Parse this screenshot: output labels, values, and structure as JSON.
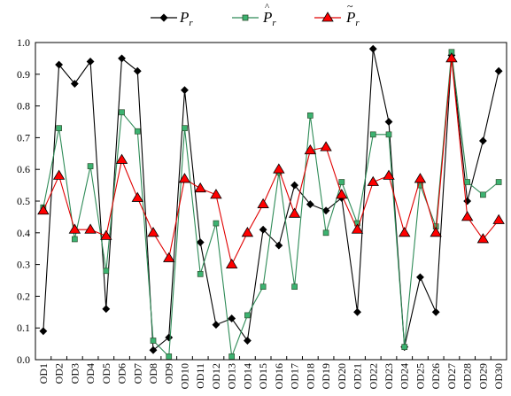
{
  "chart_data": {
    "type": "line",
    "title": "",
    "xlabel": "",
    "ylabel": "",
    "ylim": [
      0.0,
      1.0
    ],
    "yticks": [
      0.0,
      0.1,
      0.2,
      0.3,
      0.4,
      0.5,
      0.6,
      0.7,
      0.8,
      0.9,
      1.0
    ],
    "ytick_labels": [
      "0.0",
      "0.1",
      "0.2",
      "0.3",
      "0.4",
      "0.5",
      "0.6",
      "0.7",
      "0.8",
      "0.9",
      "1.0"
    ],
    "grid": false,
    "legend_position": "top",
    "categories": [
      "OD1",
      "OD2",
      "OD3",
      "OD4",
      "OD5",
      "OD6",
      "OD7",
      "OD8",
      "OD9",
      "OD10",
      "OD11",
      "OD12",
      "OD13",
      "OD14",
      "OD15",
      "OD16",
      "OD17",
      "OD18",
      "OD19",
      "OD20",
      "OD21",
      "OD22",
      "OD23",
      "OD24",
      "OD25",
      "OD26",
      "OD27",
      "OD28",
      "OD29",
      "OD30"
    ],
    "series": [
      {
        "key": "pr",
        "name": "Pr",
        "color": "#000000",
        "fill": "#000000",
        "marker": "diamond",
        "values": [
          0.09,
          0.93,
          0.87,
          0.94,
          0.16,
          0.95,
          0.91,
          0.03,
          0.07,
          0.85,
          0.37,
          0.11,
          0.13,
          0.06,
          0.41,
          0.36,
          0.55,
          0.49,
          0.47,
          0.51,
          0.15,
          0.98,
          0.75,
          0.04,
          0.26,
          0.15,
          0.96,
          0.5,
          0.69,
          0.91
        ]
      },
      {
        "key": "pr_hat",
        "name": "P̂r",
        "color": "#2e8b57",
        "fill": "#3cb371",
        "marker": "square",
        "values": [
          0.48,
          0.73,
          0.38,
          0.61,
          0.28,
          0.78,
          0.72,
          0.06,
          0.01,
          0.73,
          0.27,
          0.43,
          0.01,
          0.14,
          0.23,
          0.59,
          0.23,
          0.77,
          0.4,
          0.56,
          0.43,
          0.71,
          0.71,
          0.04,
          0.55,
          0.42,
          0.97,
          0.56,
          0.52,
          0.56
        ]
      },
      {
        "key": "pr_tilde",
        "name": "P̃r",
        "color": "#e00000",
        "fill": "#ff0000",
        "marker": "triangle",
        "values": [
          0.47,
          0.58,
          0.41,
          0.41,
          0.39,
          0.63,
          0.51,
          0.4,
          0.32,
          0.57,
          0.54,
          0.52,
          0.3,
          0.4,
          0.49,
          0.6,
          0.46,
          0.66,
          0.67,
          0.52,
          0.41,
          0.56,
          0.58,
          0.4,
          0.57,
          0.4,
          0.95,
          0.45,
          0.38,
          0.44
        ]
      }
    ]
  }
}
